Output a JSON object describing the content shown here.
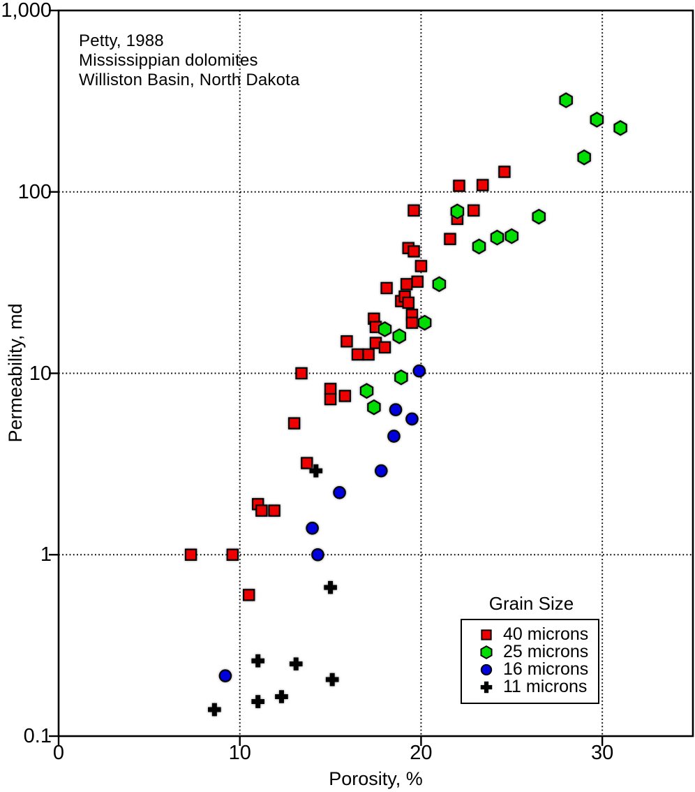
{
  "annotation": {
    "line1": "Petty, 1988",
    "line2": "Mississippian dolomites",
    "line3": "Williston Basin, North Dakota"
  },
  "axes": {
    "x_label": "Porosity, %",
    "y_label": "Permeability, md",
    "x_ticks": [
      {
        "value": 0,
        "label": "0"
      },
      {
        "value": 10,
        "label": "10"
      },
      {
        "value": 20,
        "label": "20"
      },
      {
        "value": 30,
        "label": "30"
      }
    ],
    "y_ticks": [
      {
        "value": 1000,
        "label": "1,000"
      },
      {
        "value": 100,
        "label": "100"
      },
      {
        "value": 10,
        "label": "10"
      },
      {
        "value": 1,
        "label": "1"
      },
      {
        "value": 0.1,
        "label": "0.1"
      }
    ]
  },
  "legend": {
    "title": "Grain Size",
    "items": [
      {
        "label": "40 microns",
        "marker": "square",
        "color": "#ee0000"
      },
      {
        "label": "25 microns",
        "marker": "hexagon",
        "color": "#00dd00"
      },
      {
        "label": "16 microns",
        "marker": "circle",
        "color": "#0000dd"
      },
      {
        "label": "11 microns",
        "marker": "plus",
        "color": "#000000"
      }
    ]
  },
  "chart_data": {
    "type": "scatter",
    "title": "",
    "xlabel": "Porosity, %",
    "ylabel": "Permeability, md",
    "xlim": [
      0,
      35
    ],
    "ylim": [
      0.1,
      1000
    ],
    "y_scale": "log",
    "x_gridlines": [
      10,
      20,
      30
    ],
    "y_gridlines": [
      100,
      10,
      1
    ],
    "grid_style": "dotted",
    "legend_position": "lower right",
    "series": [
      {
        "name": "40 microns",
        "marker": "square",
        "color": "#ee0000",
        "points": [
          [
            7.3,
            1.0
          ],
          [
            9.6,
            1.0
          ],
          [
            10.5,
            0.6
          ],
          [
            11.0,
            1.9
          ],
          [
            11.2,
            1.75
          ],
          [
            11.9,
            1.75
          ],
          [
            13.0,
            5.3
          ],
          [
            13.4,
            10
          ],
          [
            13.7,
            3.2
          ],
          [
            15.0,
            8.2
          ],
          [
            15.0,
            7.2
          ],
          [
            15.8,
            7.5
          ],
          [
            15.9,
            15
          ],
          [
            16.5,
            12.7
          ],
          [
            17.1,
            12.7
          ],
          [
            17.4,
            20
          ],
          [
            17.5,
            18
          ],
          [
            17.5,
            14.7
          ],
          [
            18.0,
            13.9
          ],
          [
            18.1,
            29.5
          ],
          [
            18.9,
            25
          ],
          [
            19.1,
            26.5
          ],
          [
            19.3,
            24.5
          ],
          [
            19.2,
            31
          ],
          [
            19.8,
            32
          ],
          [
            19.5,
            21
          ],
          [
            19.5,
            19
          ],
          [
            19.3,
            49
          ],
          [
            19.6,
            47
          ],
          [
            20.0,
            39
          ],
          [
            19.6,
            79
          ],
          [
            21.6,
            55
          ],
          [
            22.0,
            71
          ],
          [
            22.9,
            79
          ],
          [
            22.1,
            108
          ],
          [
            23.4,
            109
          ],
          [
            24.6,
            129
          ]
        ]
      },
      {
        "name": "25 microns",
        "marker": "hexagon",
        "color": "#00dd00",
        "points": [
          [
            17.0,
            8.0
          ],
          [
            17.4,
            6.5
          ],
          [
            18.0,
            17.5
          ],
          [
            18.8,
            16
          ],
          [
            18.9,
            9.5
          ],
          [
            20.2,
            19
          ],
          [
            21.0,
            31
          ],
          [
            22.0,
            78
          ],
          [
            23.2,
            50
          ],
          [
            24.2,
            56
          ],
          [
            25.0,
            57
          ],
          [
            26.5,
            73
          ],
          [
            28.0,
            320
          ],
          [
            29.0,
            155
          ],
          [
            29.7,
            250
          ],
          [
            31.0,
            225
          ]
        ]
      },
      {
        "name": "16 microns",
        "marker": "circle",
        "color": "#0000dd",
        "points": [
          [
            9.2,
            0.215
          ],
          [
            14.0,
            1.4
          ],
          [
            14.3,
            1.0
          ],
          [
            15.5,
            2.2
          ],
          [
            17.8,
            2.9
          ],
          [
            18.5,
            4.5
          ],
          [
            18.6,
            6.3
          ],
          [
            19.5,
            5.6
          ],
          [
            19.9,
            10.3
          ]
        ]
      },
      {
        "name": "11 microns",
        "marker": "plus",
        "color": "#000000",
        "points": [
          [
            8.6,
            0.14
          ],
          [
            11.0,
            0.155
          ],
          [
            11.0,
            0.26
          ],
          [
            12.3,
            0.165
          ],
          [
            13.1,
            0.25
          ],
          [
            14.2,
            2.9
          ],
          [
            15.0,
            0.66
          ],
          [
            15.1,
            0.205
          ]
        ]
      }
    ]
  }
}
